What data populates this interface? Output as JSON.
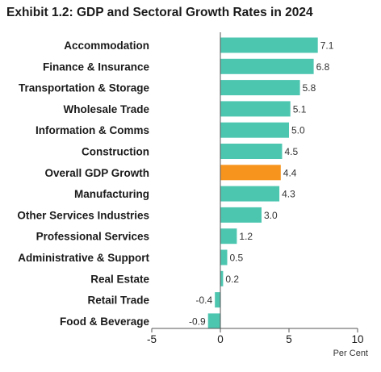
{
  "chart_data": {
    "type": "bar",
    "orientation": "horizontal",
    "title": "Exhibit 1.2: GDP and Sectoral Growth Rates in 2024",
    "xlabel": "Per Cent",
    "ylabel": "",
    "xlim": [
      -5,
      10
    ],
    "xticks": [
      -5,
      0,
      5,
      10
    ],
    "tick_labels": [
      "-5",
      "0",
      "5",
      "10"
    ],
    "grid": false,
    "legend": "none",
    "colors": {
      "bar": "#4dc6b0",
      "highlight": "#f7941d"
    },
    "highlight_category": "Overall GDP Growth",
    "categories": [
      "Accommodation",
      "Finance & Insurance",
      "Transportation & Storage",
      "Wholesale Trade",
      "Information & Comms",
      "Construction",
      "Overall GDP Growth",
      "Manufacturing",
      "Other Services Industries",
      "Professional Services",
      "Administrative & Support",
      "Real Estate",
      "Retail Trade",
      "Food & Beverage"
    ],
    "values": [
      7.1,
      6.8,
      5.8,
      5.1,
      5.0,
      4.5,
      4.4,
      4.3,
      3.0,
      1.2,
      0.5,
      0.2,
      -0.4,
      -0.9
    ],
    "value_labels": [
      "7.1",
      "6.8",
      "5.8",
      "5.1",
      "5.0",
      "4.5",
      "4.4",
      "4.3",
      "3.0",
      "1.2",
      "0.5",
      "0.2",
      "-0.4",
      "-0.9"
    ]
  }
}
